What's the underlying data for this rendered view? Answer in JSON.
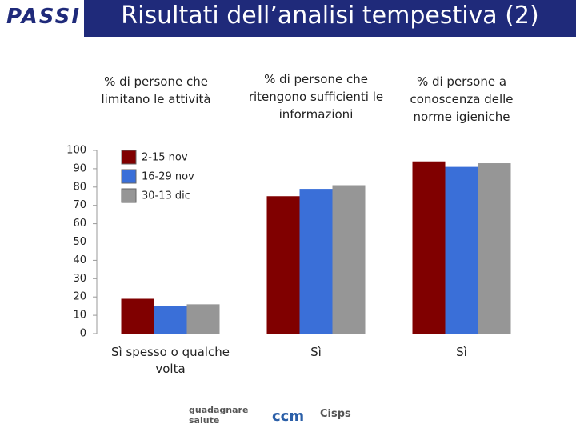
{
  "title": "Risultati dell’analisi tempestiva (2)",
  "logos": [
    "PASSI",
    "guadagnare salute",
    "ccm",
    "Cisps"
  ],
  "chart_data": {
    "type": "bar",
    "group_titles": [
      "% di persone che limitano le attività",
      "% di persone che ritengono sufficienti le informazioni",
      "% di persone a conoscenza delle norme igieniche"
    ],
    "categories": [
      "Sì spesso o qualche volta",
      "Sì",
      "Sì"
    ],
    "series": [
      {
        "name": "2-15 nov",
        "color": "#800000",
        "values": [
          19,
          75,
          94
        ]
      },
      {
        "name": "16-29 nov",
        "color": "#3a6fd8",
        "values": [
          15,
          79,
          91
        ]
      },
      {
        "name": "30-13 dic",
        "color": "#969696",
        "values": [
          16,
          81,
          93
        ]
      }
    ],
    "ylim": [
      0,
      100
    ],
    "yticks": [
      0,
      10,
      20,
      30,
      40,
      50,
      60,
      70,
      80,
      90,
      100
    ],
    "grid": false,
    "legend": "top-left"
  }
}
